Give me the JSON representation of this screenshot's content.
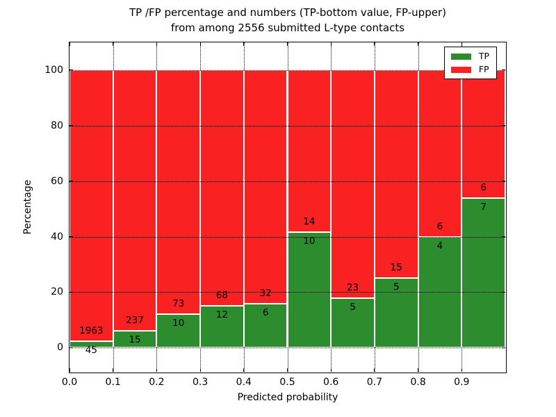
{
  "title": {
    "line1": "TP /FP percentage and numbers (TP-bottom value, FP-upper)",
    "line2": "from among 2556 submitted L-type contacts"
  },
  "legend": {
    "entries": [
      {
        "label": "TP",
        "color": "#2d8c2d"
      },
      {
        "label": "FP",
        "color": "#f92121"
      }
    ],
    "position": "upper right"
  },
  "chart_data": {
    "type": "bar",
    "subtype": "stacked-percentage-histogram",
    "title": "TP /FP percentage and numbers (TP-bottom value, FP-upper) from among 2556 submitted L-type contacts",
    "xlabel": "Predicted probability",
    "ylabel": "Percentage",
    "total_contacts": 2556,
    "bin_width": 0.1,
    "bin_starts": [
      0.0,
      0.1,
      0.2,
      0.3,
      0.4,
      0.5,
      0.6,
      0.7,
      0.8,
      0.9
    ],
    "series": [
      {
        "name": "TP",
        "color": "#2d8c2d",
        "counts": [
          45,
          15,
          10,
          12,
          6,
          10,
          5,
          5,
          4,
          7
        ]
      },
      {
        "name": "FP",
        "color": "#f92121",
        "counts": [
          1963,
          237,
          73,
          68,
          32,
          14,
          23,
          15,
          6,
          6
        ]
      }
    ],
    "tp_percent_approx": [
      2.24,
      5.95,
      12.05,
      15.0,
      15.79,
      41.67,
      17.86,
      25.0,
      40.0,
      53.85
    ],
    "bars_sum_to": 100,
    "xlim": [
      0.0,
      1.0
    ],
    "ylim": [
      -8.7,
      110
    ],
    "xticks": [
      "0.0",
      "0.1",
      "0.2",
      "0.3",
      "0.4",
      "0.5",
      "0.6",
      "0.7",
      "0.8",
      "0.9"
    ],
    "yticks": [
      "0",
      "20",
      "40",
      "60",
      "80",
      "100"
    ],
    "grid": "dotted, on",
    "bar_edge_color": "#ffffff",
    "legend_position": "upper right"
  }
}
